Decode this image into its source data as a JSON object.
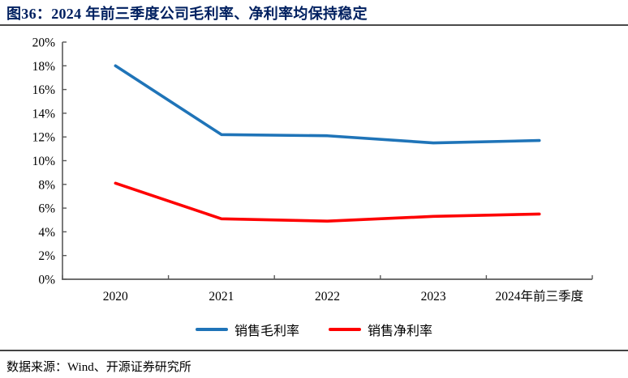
{
  "title": "图36：2024 年前三季度公司毛利率、净利率均保持稳定",
  "colors": {
    "title_text": "#002060",
    "axis": "#595959",
    "gross_margin_line": "#1F74B8",
    "net_margin_line": "#FE0000"
  },
  "chart_data": {
    "type": "line",
    "title": "图36：2024 年前三季度公司毛利率、净利率均保持稳定",
    "categories": [
      "2020",
      "2021",
      "2022",
      "2023",
      "2024年前三季度"
    ],
    "series": [
      {
        "name": "销售毛利率",
        "color": "#1F74B8",
        "values": [
          18.0,
          12.2,
          12.1,
          11.5,
          11.7
        ]
      },
      {
        "name": "销售净利率",
        "color": "#FE0000",
        "values": [
          8.1,
          5.1,
          4.9,
          5.3,
          5.5
        ]
      }
    ],
    "xlabel": "",
    "ylabel": "",
    "ylim": [
      0,
      20
    ],
    "ytick_step": 2,
    "ytick_labels": [
      "0%",
      "2%",
      "4%",
      "6%",
      "8%",
      "10%",
      "12%",
      "14%",
      "16%",
      "18%",
      "20%"
    ],
    "grid": false,
    "legend_position": "bottom"
  },
  "footer": {
    "source_text": "数据来源：Wind、开源证券研究所"
  }
}
